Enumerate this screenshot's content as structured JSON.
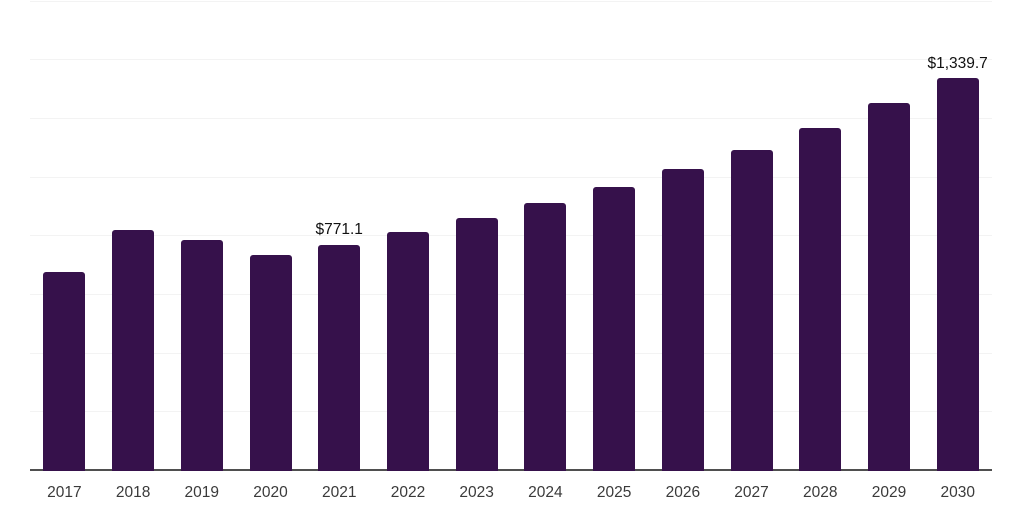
{
  "chart_data": {
    "type": "bar",
    "title": "",
    "xlabel": "",
    "ylabel": "",
    "categories": [
      "2017",
      "2018",
      "2019",
      "2020",
      "2021",
      "2022",
      "2023",
      "2024",
      "2025",
      "2026",
      "2027",
      "2028",
      "2029",
      "2030"
    ],
    "values": [
      677,
      820,
      786,
      735,
      771.1,
      814,
      861,
      912,
      967,
      1028,
      1096,
      1168,
      1253,
      1339.7
    ],
    "data_labels": [
      "",
      "",
      "",
      "",
      "$771.1",
      "",
      "",
      "",
      "",
      "",
      "",
      "",
      "",
      "$1,339.7"
    ],
    "ylim": [
      0,
      1600
    ],
    "grid_step": 200,
    "grid": true,
    "legend": "none",
    "colors": {
      "bar": "#36114B",
      "gridline": "#f3f3f3",
      "axis_line": "#4f4f4f",
      "tick_label": "#3a3a3a",
      "data_label": "#111111",
      "background": "#ffffff"
    }
  }
}
